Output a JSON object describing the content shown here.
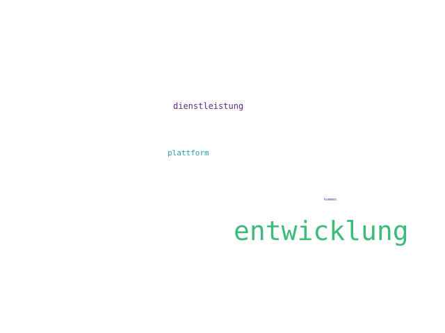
{
  "words": [
    {
      "text": "dienstleistung",
      "color": "#5b2d82"
    },
    {
      "text": "plattform",
      "color": "#2aa198"
    },
    {
      "text": "kommen",
      "color": "#5b2d82"
    },
    {
      "text": "entwicklung",
      "color": "#3dbb7a"
    }
  ]
}
